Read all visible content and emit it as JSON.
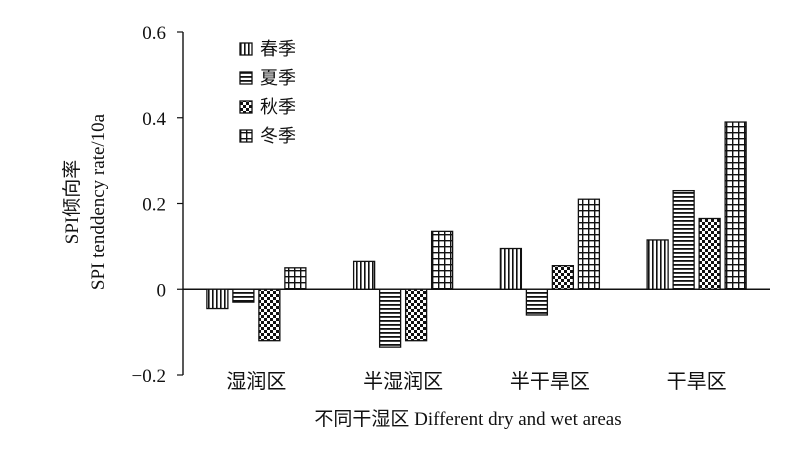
{
  "chart_data": {
    "type": "bar",
    "xlabel": "不同干湿区 Different dry and wet areas",
    "ylabel_line1": "SPI倾向率",
    "ylabel_line2": "SPI tenddency rate/10a",
    "ylim": [
      -0.2,
      0.6
    ],
    "yticks": [
      -0.2,
      0,
      0.2,
      0.4,
      0.6
    ],
    "ytick_labels": [
      "−0.2",
      "0",
      "0.2",
      "0.4",
      "0.6"
    ],
    "categories": [
      "湿润区",
      "半湿润区",
      "半干旱区",
      "干旱区"
    ],
    "legend_position": "top-left",
    "grid": false,
    "series": [
      {
        "name": "春季",
        "pattern": "vertical-stripes",
        "values": [
          -0.045,
          0.065,
          0.095,
          0.115
        ]
      },
      {
        "name": "夏季",
        "pattern": "horizontal-stripes",
        "values": [
          -0.03,
          -0.135,
          -0.06,
          0.23
        ]
      },
      {
        "name": "秋季",
        "pattern": "checker",
        "values": [
          -0.12,
          -0.12,
          0.055,
          0.165
        ]
      },
      {
        "name": "冬季",
        "pattern": "grid",
        "values": [
          0.05,
          0.135,
          0.21,
          0.39
        ]
      }
    ]
  }
}
